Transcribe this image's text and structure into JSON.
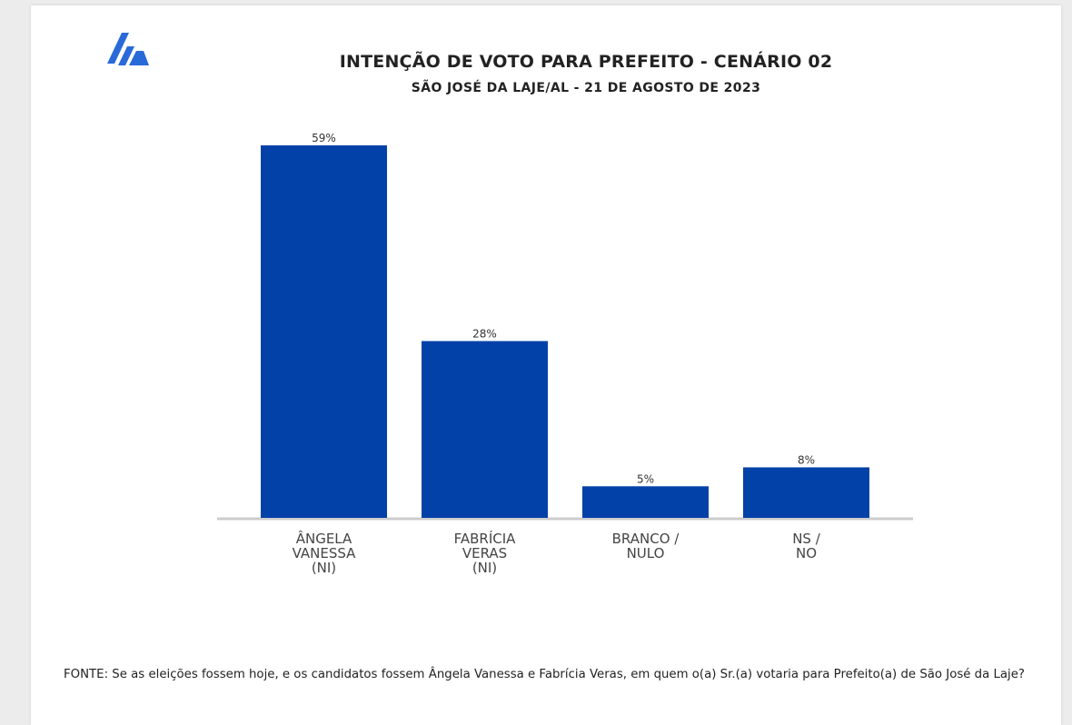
{
  "title": "INTENÇÃO DE VOTO PARA PREFEITO - CENÁRIO 02",
  "subtitle": "SÃO JOSÉ DA LAJE/AL - 21 DE AGOSTO DE 2023",
  "logo_icon": "brand-logo-icon",
  "colors": {
    "bar": "#0241a8",
    "logo": "#2a6ad8",
    "axis": "#cccccc"
  },
  "footer": "FONTE: Se as eleições fossem hoje, e os candidatos fossem Ângela Vanessa e Fabrícia Veras, em quem o(a) Sr.(a) votaria para Prefeito(a) de São José da Laje?",
  "chart_data": {
    "type": "bar",
    "categories": [
      "ÂNGELA\nVANESSA\n(NI)",
      "FABRÍCIA\nVERAS\n(NI)",
      "BRANCO /\nNULO",
      "NS /\nNO"
    ],
    "values": [
      59,
      28,
      5,
      8
    ],
    "value_labels": [
      "59%",
      "28%",
      "5%",
      "8%"
    ],
    "ylim": [
      0,
      59
    ],
    "grid": false,
    "legend": "none"
  }
}
